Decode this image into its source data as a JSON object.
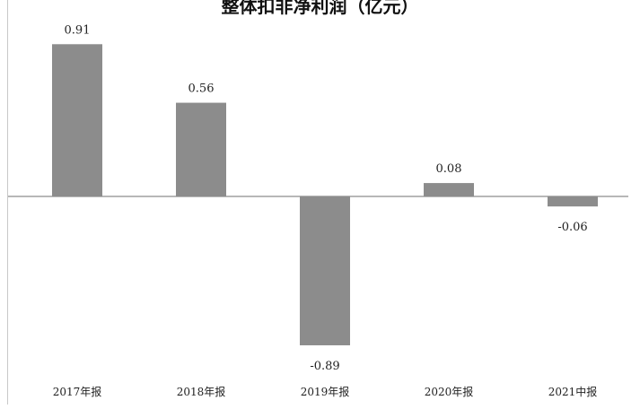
{
  "chart_data": {
    "type": "bar",
    "title": "整体扣非净利润（亿元）",
    "categories": [
      "2017年报",
      "2018年报",
      "2019年报",
      "2020年报",
      "2021中报"
    ],
    "values": [
      0.91,
      0.56,
      -0.89,
      0.08,
      -0.06
    ],
    "value_labels": [
      "0.91",
      "0.56",
      "-0.89",
      "0.08",
      "-0.06"
    ],
    "ylim": [
      -0.89,
      0.91
    ],
    "grid": false,
    "legend": "none",
    "colors": {
      "bar": "#8c8c8c",
      "axis": "#8c8c8c",
      "text": "#222222"
    }
  }
}
